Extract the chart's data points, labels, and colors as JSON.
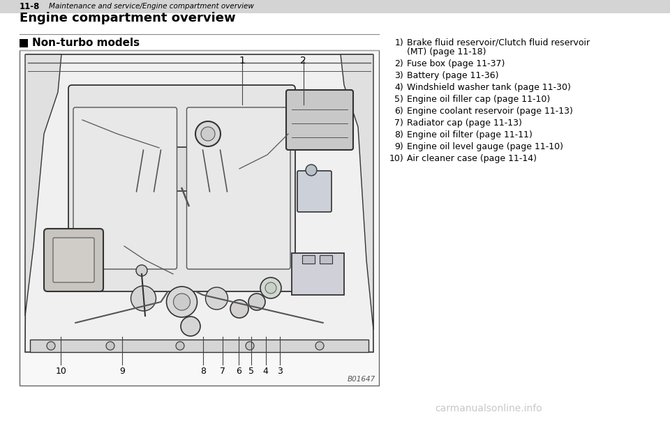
{
  "page_bg": "#ffffff",
  "header_bg": "#d4d4d4",
  "header_text": "11-8",
  "header_subtext": "Maintenance and service/Engine compartment overview",
  "section_title": "Engine compartment overview",
  "subsection_title": "Non-turbo models",
  "list_items": [
    {
      "num": "1)",
      "text": "Brake fluid reservoir/Clutch fluid reservoir\n(MT) (page 11-18)"
    },
    {
      "num": "2)",
      "text": "Fuse box (page 11-37)"
    },
    {
      "num": "3)",
      "text": "Battery (page 11-36)"
    },
    {
      "num": "4)",
      "text": "Windshield washer tank (page 11-30)"
    },
    {
      "num": "5)",
      "text": "Engine oil filler cap (page 11-10)"
    },
    {
      "num": "6)",
      "text": "Engine coolant reservoir (page 11-13)"
    },
    {
      "num": "7)",
      "text": "Radiator cap (page 11-13)"
    },
    {
      "num": "8)",
      "text": "Engine oil filter (page 11-11)"
    },
    {
      "num": "9)",
      "text": "Engine oil level gauge (page 11-10)"
    },
    {
      "num": "10)",
      "text": "Air cleaner case (page 11-14)"
    }
  ],
  "image_caption": "B01647",
  "watermark": "carmanualsonline.info",
  "diagram_numbers_top": [
    [
      "1",
      0.62
    ],
    [
      "2",
      0.79
    ]
  ],
  "diagram_numbers_bottom": [
    [
      "10",
      0.115
    ],
    [
      "9",
      0.285
    ],
    [
      "8",
      0.51
    ],
    [
      "7",
      0.565
    ],
    [
      "6",
      0.61
    ],
    [
      "5",
      0.645
    ],
    [
      "4",
      0.685
    ],
    [
      "3",
      0.725
    ]
  ],
  "lc": "#555555",
  "dc": "#333333",
  "engine_fill": "#e8e8e8",
  "diagram_bg": "#f8f8f8"
}
